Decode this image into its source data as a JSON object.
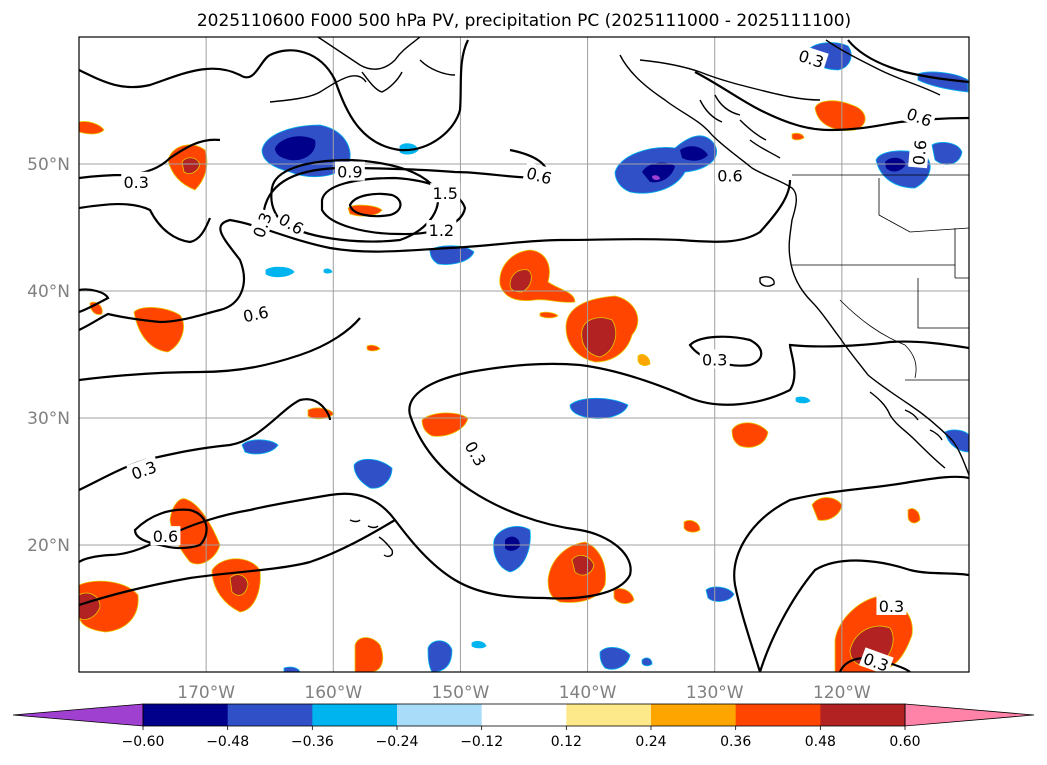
{
  "chart_data": {
    "type": "contour-map",
    "title": "2025110600 F000 500 hPa PV, precipitation PC (2025111000 - 2025111100)",
    "lon_range": [
      -180,
      -110
    ],
    "lat_range": [
      10,
      60
    ],
    "gridlines": true,
    "lon_ticks": [
      {
        "value": -170,
        "label": "170°W"
      },
      {
        "value": -160,
        "label": "160°W"
      },
      {
        "value": -150,
        "label": "150°W"
      },
      {
        "value": -140,
        "label": "140°W"
      },
      {
        "value": -130,
        "label": "130°W"
      },
      {
        "value": -120,
        "label": "120°W"
      }
    ],
    "lat_ticks": [
      {
        "value": 50,
        "label": "50°N"
      },
      {
        "value": 40,
        "label": "40°N"
      },
      {
        "value": 30,
        "label": "30°N"
      },
      {
        "value": 20,
        "label": "20°N"
      }
    ],
    "colorbar": {
      "extend": "both",
      "levels": [
        -0.72,
        -0.6,
        -0.48,
        -0.36,
        -0.24,
        -0.12,
        0.12,
        0.24,
        0.36,
        0.48,
        0.6,
        0.72
      ],
      "colors": [
        "#a040d0",
        "#00008b",
        "#3050c8",
        "#00b4f0",
        "#a8dcf8",
        "#ffffff",
        "#fde98a",
        "#ffa500",
        "#ff4500",
        "#b22222",
        "#ff82a8",
        "#ff82a8"
      ],
      "under_color": "#a040d0",
      "over_color": "#ff82a8",
      "tick_values": [
        -0.6,
        -0.48,
        -0.36,
        -0.24,
        -0.12,
        0.12,
        0.24,
        0.36,
        0.48,
        0.6
      ],
      "tick_labels": [
        "−0.60",
        "−0.48",
        "−0.36",
        "−0.24",
        "−0.12",
        "0.12",
        "0.24",
        "0.36",
        "0.48",
        "0.60"
      ]
    },
    "pv_contour_levels": [
      0.3,
      0.6,
      0.9,
      1.2,
      1.5
    ],
    "pv_contour_labels": [
      {
        "text": "0.3",
        "lon": -175.5,
        "lat": 48.6,
        "angle": 0
      },
      {
        "text": "0.3",
        "lon": -165.6,
        "lat": 45.2,
        "angle": -70
      },
      {
        "text": "0.6",
        "lon": -173.2,
        "lat": 20.7,
        "angle": 0
      },
      {
        "text": "0.3",
        "lon": -174.9,
        "lat": 25.9,
        "angle": -20
      },
      {
        "text": "0.6",
        "lon": -166.1,
        "lat": 38.2,
        "angle": -12
      },
      {
        "text": "0.6",
        "lon": -163.3,
        "lat": 45.3,
        "angle": 30
      },
      {
        "text": "0.9",
        "lon": -158.7,
        "lat": 49.4,
        "angle": 0
      },
      {
        "text": "1.5",
        "lon": -151.2,
        "lat": 47.7,
        "angle": 0
      },
      {
        "text": "1.2",
        "lon": -151.5,
        "lat": 44.8,
        "angle": 0
      },
      {
        "text": "0.6",
        "lon": -143.8,
        "lat": 49.1,
        "angle": 15
      },
      {
        "text": "0.6",
        "lon": -128.8,
        "lat": 49.1,
        "angle": 0
      },
      {
        "text": "0.3",
        "lon": -122.4,
        "lat": 58.3,
        "angle": 18
      },
      {
        "text": "0.6",
        "lon": -113.9,
        "lat": 53.7,
        "angle": 20
      },
      {
        "text": "0.6",
        "lon": -113.9,
        "lat": 50.9,
        "angle": -85
      },
      {
        "text": "0.3",
        "lon": -130.0,
        "lat": 34.6,
        "angle": 0
      },
      {
        "text": "0.3",
        "lon": -148.8,
        "lat": 27.2,
        "angle": 60
      },
      {
        "text": "0.3",
        "lon": -116.1,
        "lat": 15.2,
        "angle": 0
      },
      {
        "text": "0.3",
        "lon": -117.3,
        "lat": 10.8,
        "angle": 20
      }
    ]
  }
}
